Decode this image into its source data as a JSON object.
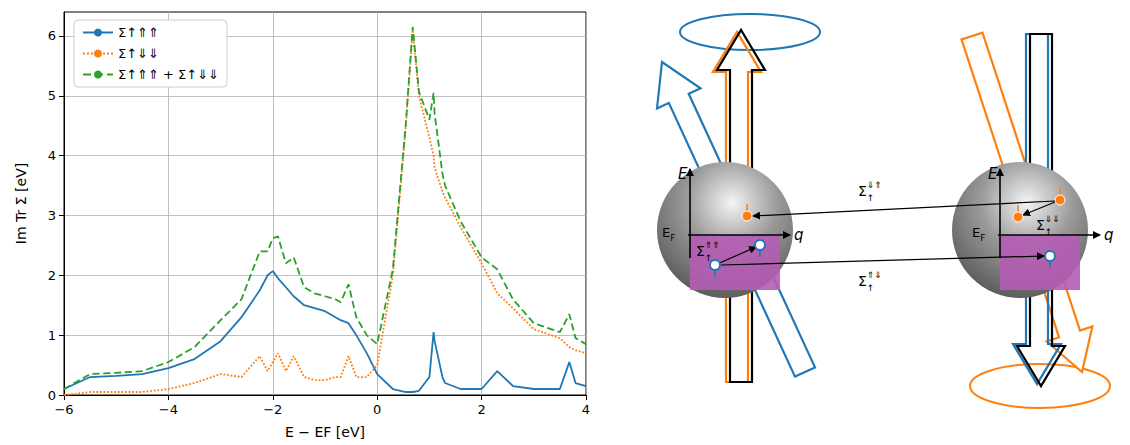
{
  "chart_data": {
    "type": "line",
    "xlabel": "E − EF [eV]",
    "ylabel": "Im Tr Σ [eV]",
    "xlim": [
      -6,
      4
    ],
    "ylim": [
      0,
      6.4
    ],
    "xticks": [
      {
        "value": -6,
        "label": "−6"
      },
      {
        "value": -4,
        "label": "−4"
      },
      {
        "value": -2,
        "label": "−2"
      },
      0,
      2,
      4
    ],
    "yticks": [
      0,
      1,
      2,
      3,
      4,
      5,
      6
    ],
    "grid": true,
    "legend": "upper left",
    "x": [
      -6,
      -5.5,
      -5,
      -4.5,
      -4,
      -3.5,
      -3,
      -2.6,
      -2.25,
      -2.1,
      -2,
      -1.9,
      -1.75,
      -1.6,
      -1.4,
      -1.2,
      -1,
      -0.8,
      -0.7,
      -0.55,
      -0.4,
      -0.2,
      0,
      0.3,
      0.55,
      0.68,
      0.8,
      1,
      1.08,
      1.1,
      1.25,
      1.3,
      1.6,
      2,
      2.3,
      2.6,
      3,
      3.5,
      3.68,
      3.8,
      4
    ],
    "series": [
      {
        "name": "Σ↑⇑⇑",
        "color": "#1f77b4",
        "line_style": "solid",
        "values": [
          0.1,
          0.3,
          0.32,
          0.35,
          0.45,
          0.6,
          0.9,
          1.3,
          1.75,
          2.0,
          2.07,
          1.95,
          1.8,
          1.65,
          1.5,
          1.45,
          1.4,
          1.3,
          1.25,
          1.2,
          1.0,
          0.7,
          0.35,
          0.1,
          0.05,
          0.05,
          0.07,
          0.3,
          1.05,
          0.9,
          0.3,
          0.2,
          0.1,
          0.1,
          0.4,
          0.15,
          0.1,
          0.1,
          0.55,
          0.2,
          0.15
        ]
      },
      {
        "name": "Σ↑⇓⇓",
        "color": "#ff7f0e",
        "line_style": "dotted",
        "values": [
          0,
          0.05,
          0.05,
          0.05,
          0.1,
          0.2,
          0.35,
          0.3,
          0.65,
          0.4,
          0.55,
          0.7,
          0.4,
          0.65,
          0.3,
          0.25,
          0.25,
          0.3,
          0.3,
          0.65,
          0.3,
          0.3,
          0.5,
          2.0,
          4.5,
          6.1,
          5.0,
          4.3,
          4.0,
          3.8,
          3.4,
          3.3,
          2.8,
          2.2,
          1.7,
          1.45,
          1.1,
          0.95,
          0.8,
          0.75,
          0.7
        ]
      },
      {
        "name": "Σ↑⇑⇑ + Σ↑⇓⇓",
        "color": "#2ca02c",
        "line_style": "dashed",
        "values": [
          0.1,
          0.35,
          0.37,
          0.4,
          0.55,
          0.8,
          1.25,
          1.6,
          2.4,
          2.4,
          2.62,
          2.65,
          2.2,
          2.3,
          1.8,
          1.7,
          1.65,
          1.6,
          1.55,
          1.85,
          1.3,
          1.0,
          0.85,
          2.1,
          4.55,
          6.15,
          5.07,
          4.6,
          5.05,
          4.7,
          3.7,
          3.5,
          2.9,
          2.3,
          2.1,
          1.6,
          1.2,
          1.05,
          1.35,
          0.95,
          0.85
        ]
      }
    ]
  },
  "diagram": {
    "panels": [
      {
        "axis_labels": {
          "energy": "E",
          "fermi": "EF",
          "momentum": "q"
        },
        "self_energy": "Σ↑⇑⇑"
      },
      {
        "axis_labels": {
          "energy": "E",
          "fermi": "EF",
          "momentum": "q"
        },
        "self_energy": "Σ↑⇓⇓"
      }
    ],
    "transitions": [
      "Σ↑⇓⇑",
      "Σ↑⇑⇓"
    ]
  }
}
